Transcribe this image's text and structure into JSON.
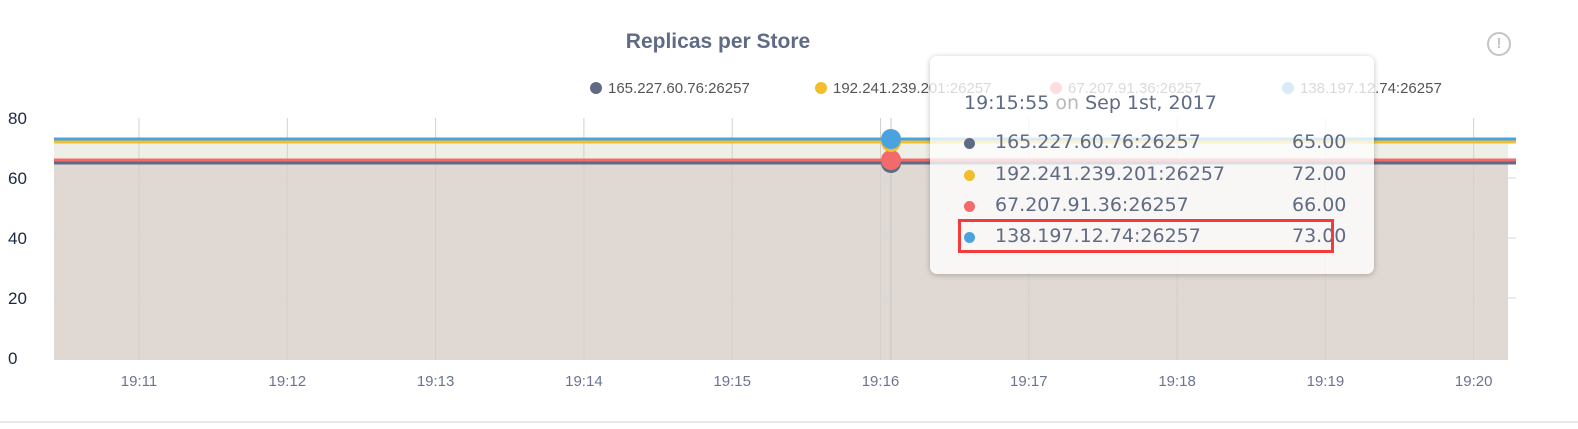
{
  "chart_data": {
    "type": "area",
    "title": "Replicas per Store",
    "ylim": [
      0,
      80
    ],
    "yticks": [
      "0",
      "20",
      "40",
      "60",
      "80"
    ],
    "xticks": [
      "19:11",
      "19:12",
      "19:13",
      "19:14",
      "19:15",
      "19:16",
      "19:17",
      "19:18",
      "19:19",
      "19:20"
    ],
    "grid": true,
    "legend_position": "top",
    "series": [
      {
        "name": "165.227.60.76:26257",
        "color": "#5f6b85",
        "value": 65
      },
      {
        "name": "192.241.239.201:26257",
        "color": "#f2be2c",
        "value": 72
      },
      {
        "name": "67.207.91.36:26257",
        "color": "#f26a6a",
        "value": 66
      },
      {
        "name": "138.197.12.74:26257",
        "color": "#4aa3df",
        "value": 73
      }
    ],
    "hover_x": "19:16"
  },
  "info_icon": "info-exclamation-icon",
  "tooltip": {
    "time": "19:15:55",
    "on": "on",
    "date": "Sep 1st, 2017",
    "rows": [
      {
        "label": "165.227.60.76:26257",
        "value": "65.00"
      },
      {
        "label": "192.241.239.201:26257",
        "value": "72.00"
      },
      {
        "label": "67.207.91.36:26257",
        "value": "66.00"
      },
      {
        "label": "138.197.12.74:26257",
        "value": "73.00"
      }
    ]
  }
}
